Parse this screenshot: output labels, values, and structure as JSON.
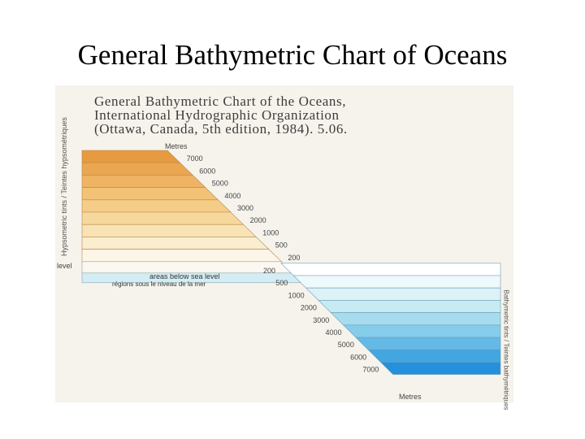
{
  "slide": {
    "title": "General Bathymetric Chart of Oceans"
  },
  "scan": {
    "heading_lines": [
      "General Bathymetric Chart of the Oceans,",
      "International Hydrographic Organization",
      "(Ottawa, Canada, 5th edition, 1984). 5.06."
    ],
    "left_side_text": "Hypsometric tints / Teintes hypsométriques",
    "right_side_text": "Bathymetric tints / Teintes bathymétriques",
    "level_label": "level",
    "below_sea_level_lines": [
      "areas below sea level",
      "régions sous le niveau de la mer"
    ],
    "elevation_unit_label": "Metres",
    "depth_unit_label": "Metres",
    "elevation_ticks": [
      "7000",
      "6000",
      "5000",
      "4000",
      "3000",
      "2000",
      "1000",
      "500",
      "200"
    ],
    "depth_ticks": [
      "200",
      "500",
      "1000",
      "2000",
      "3000",
      "4000",
      "5000",
      "6000",
      "7000"
    ],
    "elevation_colors": [
      "#e79a3f",
      "#eba652",
      "#efb463",
      "#f2c276",
      "#f5cd88",
      "#f7d89c",
      "#f9e3b4",
      "#fbedcf",
      "#fdf6e8"
    ],
    "depth_colors": [
      "#ffffff",
      "#eef9fb",
      "#dcf2f7",
      "#c6ebf3",
      "#a6dcee",
      "#86cceb",
      "#64b9e6",
      "#43a6e1",
      "#2590db"
    ],
    "level_band_color": "#d4ecf3"
  }
}
